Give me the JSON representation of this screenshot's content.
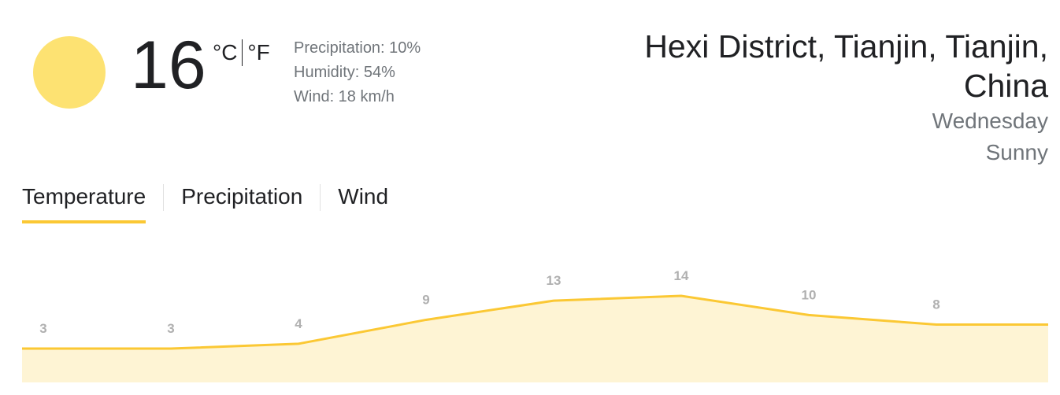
{
  "current": {
    "temperature": "16",
    "unit_c": "°C",
    "unit_f": "°F",
    "details": [
      "Precipitation: 10%",
      "Humidity: 54%",
      "Wind: 18 km/h"
    ]
  },
  "location": {
    "name": "Hexi District, Tianjin, Tianjin, China",
    "day": "Wednesday",
    "condition": "Sunny"
  },
  "tabs": [
    "Temperature",
    "Precipitation",
    "Wind"
  ],
  "chart_data": {
    "type": "line",
    "values": [
      3,
      3,
      4,
      9,
      13,
      14,
      10,
      8
    ],
    "color": "#fbc834",
    "fill": "#fef4d4"
  }
}
